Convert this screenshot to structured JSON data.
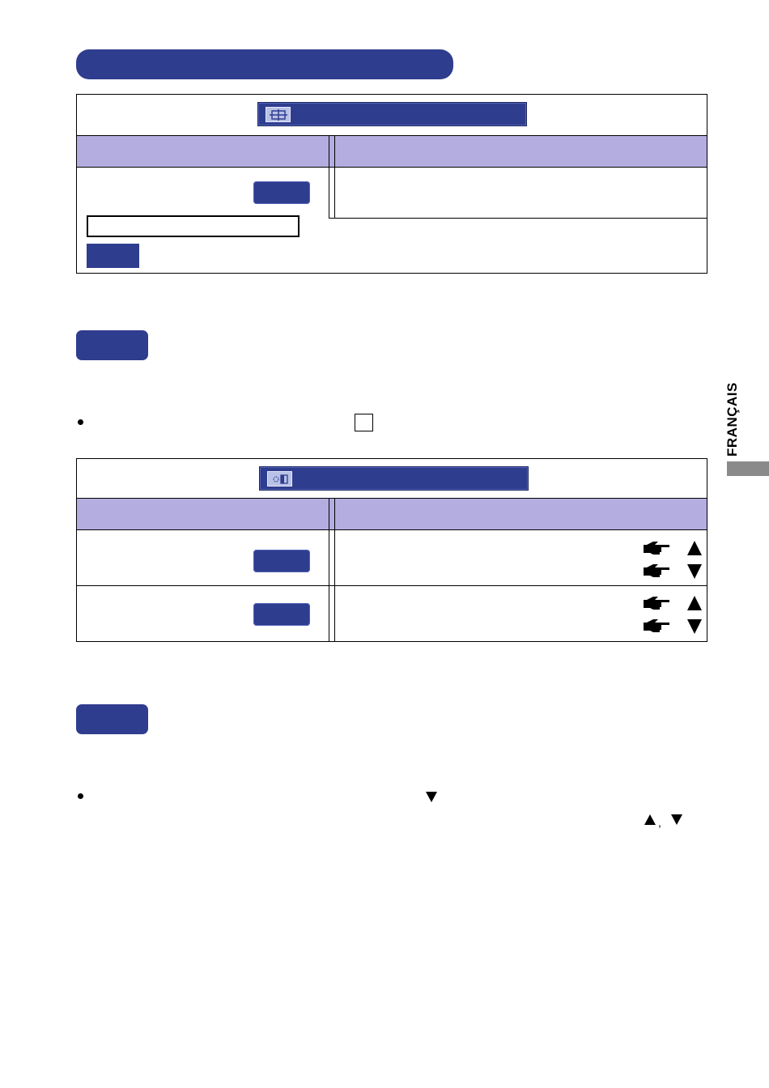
{
  "language_tab": {
    "label": "FRANÇAIS",
    "color": "#8a8a8a"
  },
  "colors": {
    "accent": "#2f3d8f",
    "header": "#b4ade0"
  },
  "table1": {
    "icon": "position-grid-icon",
    "rows": 1,
    "buttons": 1
  },
  "table2": {
    "icon": "brightness-contrast-icon",
    "rows": [
      {
        "arrows": [
          "up",
          "down"
        ]
      },
      {
        "arrows": [
          "up",
          "down"
        ]
      }
    ]
  },
  "pointing_hand_icon": "pointing-hand-icon"
}
